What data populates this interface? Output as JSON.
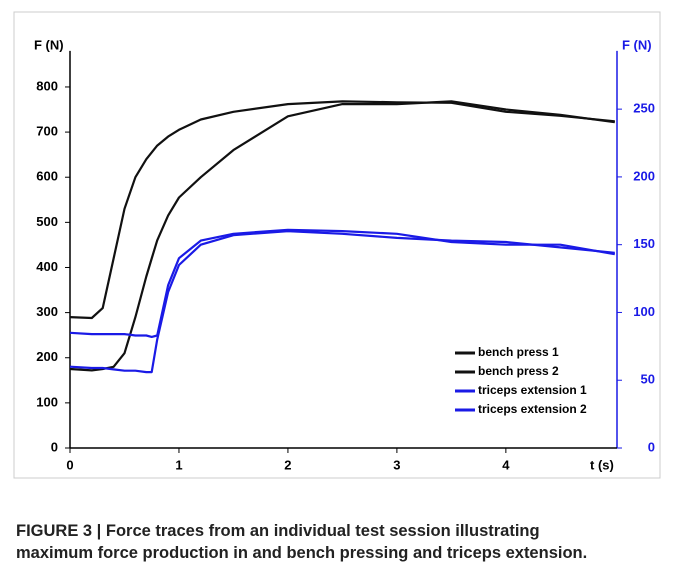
{
  "chart_data": {
    "type": "line",
    "caption": [
      "FIGURE 3 | Force traces from an individual test session illustrating",
      "maximum force production in and bench pressing and triceps extension."
    ],
    "ylabel": "F (N)",
    "y2label": "F (N)",
    "xlabel": "t (s)",
    "x": [
      0,
      0.2,
      0.3,
      0.4,
      0.5,
      0.6,
      0.7,
      0.75,
      0.8,
      0.9,
      1.0,
      1.2,
      1.5,
      2.0,
      2.5,
      3.0,
      3.5,
      4.0,
      4.5,
      5.0
    ],
    "xlim": [
      0,
      5.02
    ],
    "xticks": [
      0,
      1,
      2,
      3,
      4
    ],
    "ylim": [
      0,
      880
    ],
    "yticks": [
      0,
      100,
      200,
      300,
      400,
      500,
      600,
      700,
      800
    ],
    "y2lim": [
      0,
      293
    ],
    "y2ticks": [
      0,
      50,
      100,
      150,
      200,
      250
    ],
    "legend": "lower right",
    "series": [
      {
        "name": "bench press 1",
        "color": "#111111",
        "values": [
          290,
          288,
          310,
          420,
          530,
          600,
          640,
          655,
          670,
          690,
          705,
          728,
          745,
          762,
          768,
          766,
          765,
          745,
          736,
          724
        ]
      },
      {
        "name": "bench press 2",
        "color": "#111111",
        "values": [
          175,
          172,
          175,
          180,
          210,
          290,
          380,
          420,
          460,
          515,
          555,
          600,
          660,
          735,
          762,
          762,
          768,
          750,
          738,
          722
        ]
      },
      {
        "name": "triceps extension 1",
        "color": "#1a1ae6",
        "axis": "y2",
        "values": [
          85,
          84,
          84,
          84,
          84,
          83,
          83,
          82,
          83,
          120,
          140,
          153,
          158,
          161,
          160,
          158,
          152,
          150,
          150,
          143
        ]
      },
      {
        "name": "triceps extension 2",
        "color": "#1a1ae6",
        "axis": "y2",
        "values": [
          60,
          59,
          59,
          58,
          57,
          57,
          56,
          56,
          80,
          115,
          135,
          150,
          157,
          160,
          158,
          155,
          153,
          152,
          148,
          144
        ]
      }
    ]
  }
}
